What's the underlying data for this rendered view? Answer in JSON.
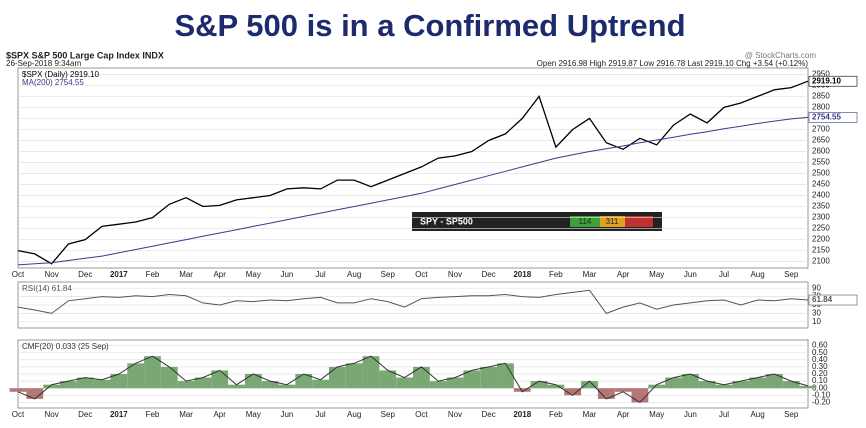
{
  "title": "S&P 500 is in a Confirmed Uptrend",
  "header": {
    "symbol": "$SPX S&P 500 Large Cap Index INDX",
    "source": "@ StockCharts.com",
    "date": "26-Sep-2018 9:34am",
    "quote": "Open 2916.98  High 2919.87  Low 2916.78  Last 2919.10  Chg +3.54 (+0.12%)"
  },
  "widget": {
    "label": "SPY - SP500",
    "left": "114",
    "mid": "311"
  },
  "chart_data": [
    {
      "type": "line",
      "categories": [
        "Oct",
        null,
        "Nov",
        null,
        "Dec",
        null,
        "2017",
        null,
        "Feb",
        null,
        "Mar",
        null,
        "Apr",
        null,
        "May",
        null,
        "Jun",
        null,
        "Jul",
        null,
        "Aug",
        null,
        "Sep",
        null,
        "Oct",
        null,
        "Nov",
        null,
        "Dec",
        null,
        "2018",
        null,
        "Feb",
        null,
        "Mar",
        null,
        "Apr",
        null,
        "May",
        null,
        "Jun",
        null,
        "Jul",
        null,
        "Aug",
        null,
        "Sep",
        null
      ],
      "series": [
        {
          "name": "$SPX (Daily) 2919.10",
          "color": "#000000",
          "end_label": "2919.10",
          "values": [
            2150,
            2135,
            2090,
            2180,
            2200,
            2260,
            2270,
            2280,
            2300,
            2360,
            2390,
            2350,
            2355,
            2380,
            2390,
            2400,
            2430,
            2435,
            2430,
            2470,
            2470,
            2440,
            2470,
            2500,
            2530,
            2570,
            2580,
            2600,
            2650,
            2680,
            2750,
            2850,
            2620,
            2700,
            2750,
            2640,
            2610,
            2660,
            2630,
            2720,
            2770,
            2730,
            2800,
            2820,
            2850,
            2880,
            2890,
            2919.1
          ]
        },
        {
          "name": "MA(200) 2754.55",
          "color": "#3a3a8c",
          "end_label": "2754.55",
          "values": [
            2085,
            2090,
            2095,
            2105,
            2115,
            2125,
            2140,
            2155,
            2170,
            2185,
            2200,
            2215,
            2230,
            2245,
            2260,
            2275,
            2290,
            2305,
            2320,
            2335,
            2350,
            2365,
            2380,
            2395,
            2410,
            2430,
            2450,
            2470,
            2490,
            2510,
            2530,
            2550,
            2570,
            2585,
            2600,
            2612,
            2625,
            2640,
            2652,
            2665,
            2678,
            2690,
            2703,
            2715,
            2727,
            2738,
            2748,
            2754.55
          ]
        }
      ],
      "ylim": [
        2080,
        2970
      ],
      "yticks": [
        2100,
        2150,
        2200,
        2250,
        2300,
        2350,
        2400,
        2450,
        2500,
        2550,
        2600,
        2650,
        2700,
        2750,
        2800,
        2850,
        2900,
        2950
      ],
      "grid": true
    },
    {
      "type": "line",
      "series": [
        {
          "name": "RSI(14) 61.84",
          "color": "#555555",
          "end_label": "61.84",
          "values": [
            45,
            38,
            30,
            60,
            65,
            70,
            68,
            72,
            70,
            75,
            72,
            55,
            50,
            60,
            58,
            62,
            60,
            65,
            68,
            55,
            55,
            65,
            58,
            45,
            65,
            68,
            70,
            72,
            72,
            75,
            70,
            68,
            75,
            80,
            85,
            30,
            45,
            55,
            40,
            50,
            55,
            60,
            62,
            50,
            62,
            60,
            65,
            61.84
          ]
        }
      ],
      "ylim": [
        0,
        100
      ],
      "yticks": [
        10,
        30,
        50,
        70,
        90
      ],
      "grid": true
    },
    {
      "type": "area",
      "categories": [
        "Oct",
        null,
        "Nov",
        null,
        "Dec",
        null,
        "2017",
        null,
        "Feb",
        null,
        "Mar",
        null,
        "Apr",
        null,
        "May",
        null,
        "Jun",
        null,
        "Jul",
        null,
        "Aug",
        null,
        "Sep",
        null,
        "Oct",
        null,
        "Nov",
        null,
        "Dec",
        null,
        "2018",
        null,
        "Feb",
        null,
        "Mar",
        null,
        "Apr",
        null,
        "May",
        null,
        "Jun",
        null,
        "Jul",
        null,
        "Aug",
        null,
        "Sep",
        null
      ],
      "series": [
        {
          "name": "CMF(20) 0.033 (25 Sep)",
          "color": "#333333",
          "positive_color": "#7aa874",
          "negative_color": "#b57676",
          "values": [
            -0.05,
            -0.15,
            0.05,
            0.1,
            0.15,
            0.12,
            0.2,
            0.35,
            0.45,
            0.3,
            0.1,
            0.15,
            0.25,
            0.05,
            0.2,
            0.1,
            0.05,
            0.2,
            0.12,
            0.3,
            0.35,
            0.45,
            0.25,
            0.15,
            0.3,
            0.1,
            0.15,
            0.25,
            0.3,
            0.35,
            -0.05,
            0.1,
            0.05,
            -0.1,
            0.1,
            -0.15,
            -0.05,
            -0.2,
            0.05,
            0.15,
            0.2,
            0.1,
            0.05,
            0.1,
            0.15,
            0.2,
            0.1,
            0.033
          ]
        }
      ],
      "ylim": [
        -0.25,
        0.65
      ],
      "yticks": [
        {
          "value": -0.2,
          "label": "-0.20"
        },
        {
          "value": -0.1,
          "label": "-0.10"
        },
        {
          "value": 0,
          "label": "0.00"
        },
        {
          "value": 0.1,
          "label": "0.10"
        },
        {
          "value": 0.2,
          "label": "0.20"
        },
        {
          "value": 0.3,
          "label": "0.30"
        },
        {
          "value": 0.4,
          "label": "0.40"
        },
        {
          "value": 0.5,
          "label": "0.50"
        },
        {
          "value": 0.6,
          "label": "0.60"
        }
      ],
      "grid": true
    }
  ]
}
